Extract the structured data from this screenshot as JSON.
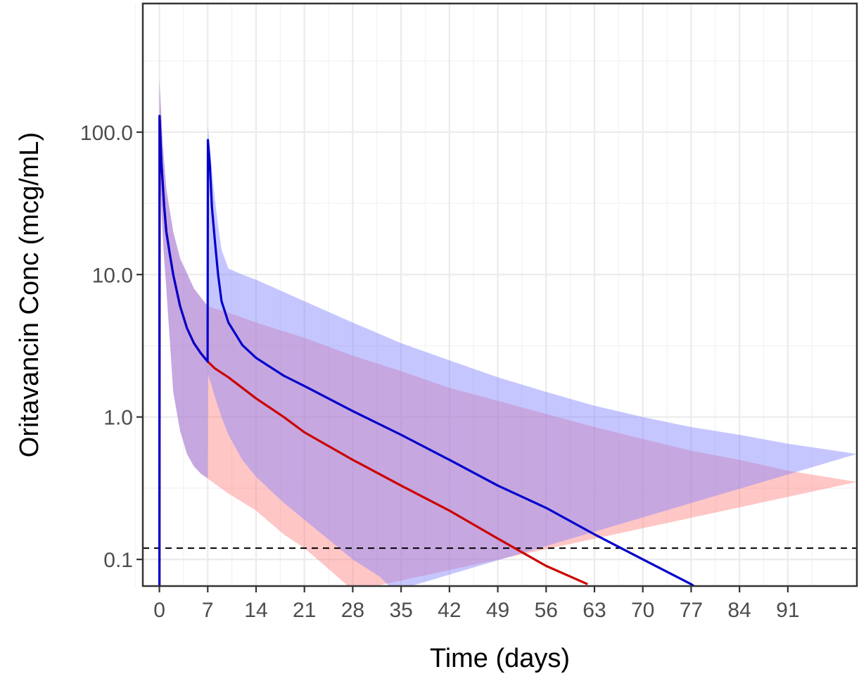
{
  "chart_data": {
    "type": "line",
    "title": "",
    "xlabel": "Time (days)",
    "ylabel": "Oritavancin Conc (mcg/mL)",
    "x_ticks": [
      0,
      7,
      14,
      21,
      28,
      35,
      42,
      49,
      56,
      63,
      70,
      77,
      84,
      91
    ],
    "y_ticks": [
      0.1,
      1.0,
      10.0,
      100.0
    ],
    "y_tick_labels": [
      "0.1",
      "1.0",
      "10.0",
      "100.0"
    ],
    "xlim": [
      -2.4,
      101
    ],
    "ylim": [
      0.065,
      800
    ],
    "y_scale": "log",
    "grid": true,
    "legend": "none",
    "reference_line": {
      "y": 0.12,
      "style": "dashed",
      "color": "#000000"
    },
    "series": [
      {
        "color": "#cc0000",
        "band_color": "#ff8080",
        "median": [
          [
            0,
            0.01
          ],
          [
            0.02,
            130
          ],
          [
            0.3,
            60
          ],
          [
            0.7,
            30
          ],
          [
            1,
            20
          ],
          [
            1.5,
            14
          ],
          [
            2,
            10
          ],
          [
            3,
            6
          ],
          [
            4,
            4.2
          ],
          [
            5,
            3.3
          ],
          [
            6,
            2.8
          ],
          [
            7,
            2.45
          ],
          [
            8,
            2.2
          ],
          [
            10,
            1.9
          ],
          [
            14,
            1.35
          ],
          [
            18,
            1.0
          ],
          [
            21,
            0.78
          ],
          [
            28,
            0.5
          ],
          [
            35,
            0.33
          ],
          [
            42,
            0.22
          ],
          [
            49,
            0.14
          ],
          [
            56,
            0.09
          ],
          [
            62,
            0.067
          ]
        ],
        "upper": [
          [
            0,
            235
          ],
          [
            0.5,
            80
          ],
          [
            1,
            40
          ],
          [
            2,
            20
          ],
          [
            3,
            13
          ],
          [
            5,
            8
          ],
          [
            7,
            6
          ],
          [
            10,
            5.4
          ],
          [
            14,
            4.6
          ],
          [
            21,
            3.6
          ],
          [
            28,
            2.7
          ],
          [
            35,
            2.1
          ],
          [
            42,
            1.6
          ],
          [
            49,
            1.3
          ],
          [
            56,
            1.05
          ],
          [
            63,
            0.85
          ],
          [
            70,
            0.7
          ],
          [
            77,
            0.58
          ],
          [
            84,
            0.5
          ],
          [
            91,
            0.42
          ],
          [
            101,
            0.35
          ]
        ],
        "lower": [
          [
            0,
            0.01
          ],
          [
            0.1,
            60
          ],
          [
            0.3,
            28
          ],
          [
            0.6,
            15
          ],
          [
            1,
            8
          ],
          [
            1.5,
            3.5
          ],
          [
            2,
            1.5
          ],
          [
            3,
            0.8
          ],
          [
            4,
            0.55
          ],
          [
            5,
            0.45
          ],
          [
            6,
            0.4
          ],
          [
            7,
            0.37
          ],
          [
            8,
            0.34
          ],
          [
            10,
            0.29
          ],
          [
            14,
            0.22
          ],
          [
            18,
            0.15
          ],
          [
            21,
            0.12
          ],
          [
            24,
            0.09
          ],
          [
            27,
            0.067
          ],
          [
            28,
            0.06
          ]
        ]
      },
      {
        "color": "#0000cc",
        "band_color": "#8080ff",
        "median": [
          [
            0,
            0.01
          ],
          [
            0.02,
            130
          ],
          [
            0.3,
            60
          ],
          [
            0.7,
            30
          ],
          [
            1,
            20
          ],
          [
            1.5,
            14
          ],
          [
            2,
            10
          ],
          [
            3,
            6
          ],
          [
            4,
            4.2
          ],
          [
            5,
            3.3
          ],
          [
            6,
            2.8
          ],
          [
            6.98,
            2.45
          ],
          [
            7.02,
            88
          ],
          [
            7.3,
            60
          ],
          [
            7.6,
            30
          ],
          [
            8,
            18
          ],
          [
            8.5,
            10
          ],
          [
            9,
            6.5
          ],
          [
            10,
            4.6
          ],
          [
            12,
            3.2
          ],
          [
            14,
            2.6
          ],
          [
            18,
            1.95
          ],
          [
            21,
            1.65
          ],
          [
            28,
            1.1
          ],
          [
            35,
            0.75
          ],
          [
            42,
            0.5
          ],
          [
            49,
            0.33
          ],
          [
            56,
            0.23
          ],
          [
            63,
            0.15
          ],
          [
            70,
            0.1
          ],
          [
            77,
            0.067
          ],
          [
            78,
            0.062
          ]
        ],
        "upper": [
          [
            0,
            235
          ],
          [
            0.5,
            80
          ],
          [
            1,
            40
          ],
          [
            2,
            20
          ],
          [
            3,
            13
          ],
          [
            5,
            8
          ],
          [
            6.98,
            6
          ],
          [
            7.02,
            110
          ],
          [
            7.5,
            60
          ],
          [
            8,
            35
          ],
          [
            8.5,
            22
          ],
          [
            9,
            15
          ],
          [
            10,
            11
          ],
          [
            12,
            10
          ],
          [
            14,
            9.2
          ],
          [
            21,
            6.5
          ],
          [
            28,
            4.6
          ],
          [
            35,
            3.3
          ],
          [
            42,
            2.5
          ],
          [
            49,
            1.9
          ],
          [
            56,
            1.5
          ],
          [
            63,
            1.2
          ],
          [
            70,
            1.0
          ],
          [
            77,
            0.85
          ],
          [
            84,
            0.75
          ],
          [
            91,
            0.65
          ],
          [
            101,
            0.55
          ]
        ],
        "lower": [
          [
            0,
            0.01
          ],
          [
            0.1,
            60
          ],
          [
            0.3,
            28
          ],
          [
            0.6,
            15
          ],
          [
            1,
            8
          ],
          [
            1.5,
            3.5
          ],
          [
            2,
            1.5
          ],
          [
            3,
            0.8
          ],
          [
            4,
            0.55
          ],
          [
            5,
            0.45
          ],
          [
            6,
            0.4
          ],
          [
            6.98,
            0.37
          ],
          [
            7.02,
            2.0
          ],
          [
            7.5,
            1.7
          ],
          [
            8,
            1.4
          ],
          [
            9,
            1.0
          ],
          [
            10,
            0.75
          ],
          [
            12,
            0.5
          ],
          [
            14,
            0.38
          ],
          [
            18,
            0.25
          ],
          [
            21,
            0.19
          ],
          [
            28,
            0.1
          ],
          [
            32,
            0.075
          ],
          [
            34,
            0.06
          ]
        ]
      }
    ]
  }
}
